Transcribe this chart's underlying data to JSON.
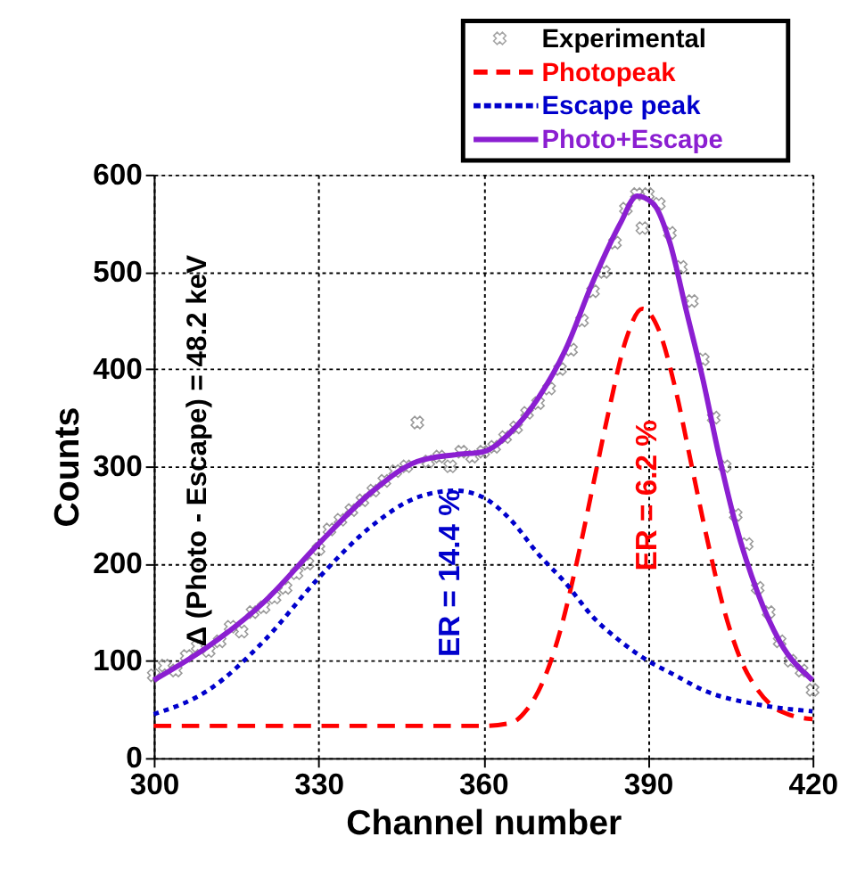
{
  "chart_data": {
    "type": "line",
    "xlabel": "Channel number",
    "ylabel": "Counts",
    "xlim": [
      300,
      420
    ],
    "xticks": [
      300,
      330,
      360,
      390,
      420
    ],
    "ylim": [
      0,
      600
    ],
    "yticks": [
      0,
      100,
      200,
      300,
      400,
      500,
      600
    ],
    "grid": true,
    "legend": "top right",
    "annotations": [
      "Δ (Photo - Escape) = 48.2 keV",
      "ER = 14.4 %",
      "ER = 6.2 %"
    ],
    "series": [
      {
        "name": "Experimental",
        "type": "scatter",
        "marker": "cross",
        "color": "#808080",
        "x": [
          300,
          302,
          304,
          306,
          308,
          310,
          312,
          314,
          316,
          318,
          320,
          322,
          324,
          326,
          328,
          330,
          332,
          334,
          336,
          338,
          340,
          342,
          344,
          346,
          348,
          350,
          352,
          354,
          356,
          358,
          360,
          362,
          364,
          366,
          368,
          370,
          372,
          374,
          376,
          378,
          380,
          382,
          384,
          386,
          388,
          389,
          390,
          392,
          394,
          396,
          398,
          400,
          402,
          404,
          406,
          408,
          410,
          412,
          414,
          416,
          418,
          420
        ],
        "values": [
          85,
          95,
          90,
          105,
          115,
          110,
          120,
          135,
          130,
          150,
          155,
          165,
          175,
          190,
          200,
          215,
          235,
          245,
          255,
          265,
          275,
          285,
          295,
          300,
          345,
          305,
          310,
          300,
          315,
          310,
          315,
          320,
          330,
          340,
          355,
          365,
          380,
          400,
          420,
          450,
          480,
          500,
          530,
          565,
          580,
          545,
          580,
          570,
          540,
          505,
          470,
          410,
          350,
          300,
          250,
          220,
          175,
          150,
          120,
          100,
          90,
          70
        ]
      },
      {
        "name": "Photopeak",
        "line_style": "dashed",
        "color": "#ff0000",
        "x": [
          300,
          360,
          365,
          368,
          371,
          374,
          377,
          380,
          383,
          386,
          389,
          392,
          395,
          398,
          401,
          404,
          407,
          410,
          413,
          416,
          420
        ],
        "values": [
          33,
          33,
          36,
          50,
          80,
          130,
          200,
          280,
          360,
          430,
          462,
          440,
          380,
          300,
          220,
          150,
          100,
          70,
          52,
          44,
          40
        ]
      },
      {
        "name": "Escape peak",
        "line_style": "dotted",
        "color": "#0000cc",
        "x": [
          300,
          310,
          320,
          330,
          340,
          348,
          355,
          360,
          365,
          370,
          375,
          380,
          385,
          390,
          395,
          400,
          410,
          420
        ],
        "values": [
          45,
          70,
          120,
          185,
          240,
          268,
          275,
          268,
          245,
          210,
          180,
          145,
          120,
          100,
          85,
          70,
          55,
          48
        ]
      },
      {
        "name": "Photo+Escape",
        "line_style": "solid",
        "color": "#8b1fd1",
        "x": [
          300,
          310,
          320,
          330,
          340,
          348,
          355,
          360,
          365,
          370,
          375,
          380,
          385,
          388,
          391,
          394,
          397,
          400,
          403,
          406,
          410,
          414,
          420
        ],
        "values": [
          80,
          115,
          160,
          220,
          275,
          305,
          312,
          315,
          335,
          370,
          420,
          490,
          550,
          578,
          570,
          530,
          460,
          390,
          310,
          240,
          170,
          120,
          80
        ]
      }
    ]
  }
}
